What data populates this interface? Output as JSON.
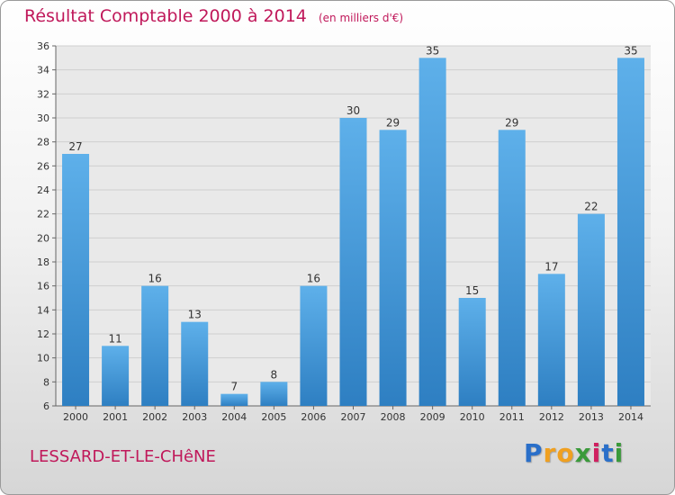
{
  "chart_data": {
    "type": "bar",
    "title": "Résultat Comptable 2000 à 2014",
    "subtitle": "(en milliers d'€)",
    "categories": [
      "2000",
      "2001",
      "2002",
      "2003",
      "2004",
      "2005",
      "2006",
      "2007",
      "2008",
      "2009",
      "2010",
      "2011",
      "2012",
      "2013",
      "2014"
    ],
    "values": [
      27,
      11,
      16,
      13,
      7,
      8,
      16,
      30,
      29,
      35,
      15,
      29,
      17,
      22,
      35
    ],
    "ylim": [
      6,
      36
    ],
    "yticks": [
      6,
      8,
      10,
      12,
      14,
      16,
      18,
      20,
      22,
      24,
      26,
      28,
      30,
      32,
      34,
      36
    ],
    "xlabel": "",
    "ylabel": "",
    "grid": true,
    "bar_color": "#3a8fd4"
  },
  "commune": "LESSARD-ET-LE-CHêNE",
  "logo": {
    "letters": [
      "P",
      "r",
      "o",
      "x",
      "i",
      "t",
      "i"
    ],
    "colors": [
      "#2a6fc9",
      "#f0a020",
      "#f0a020",
      "#3a9a3a",
      "#d02060",
      "#2a6fc9",
      "#3a9a3a"
    ]
  }
}
